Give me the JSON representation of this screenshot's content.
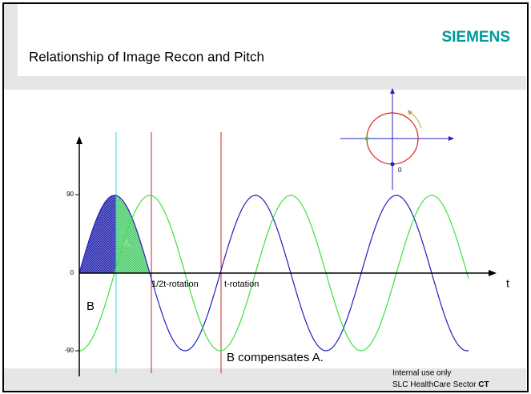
{
  "header": {
    "title": "Relationship of Image Recon and Pitch",
    "logo": "SIEMENS"
  },
  "plot": {
    "y_ticks": [
      "90",
      "0",
      "-90"
    ],
    "x_axis_label": "t",
    "labels": {
      "half_rotation": "1/2t-rotation",
      "rotation": "t-rotation",
      "area_a": "A",
      "area_b": "B",
      "note": "B compensates A."
    },
    "inset_label": "0"
  },
  "footer": {
    "line1": "Internal use only",
    "line2": "SLC HealthCare Sector",
    "line2_bold": "CT"
  }
}
